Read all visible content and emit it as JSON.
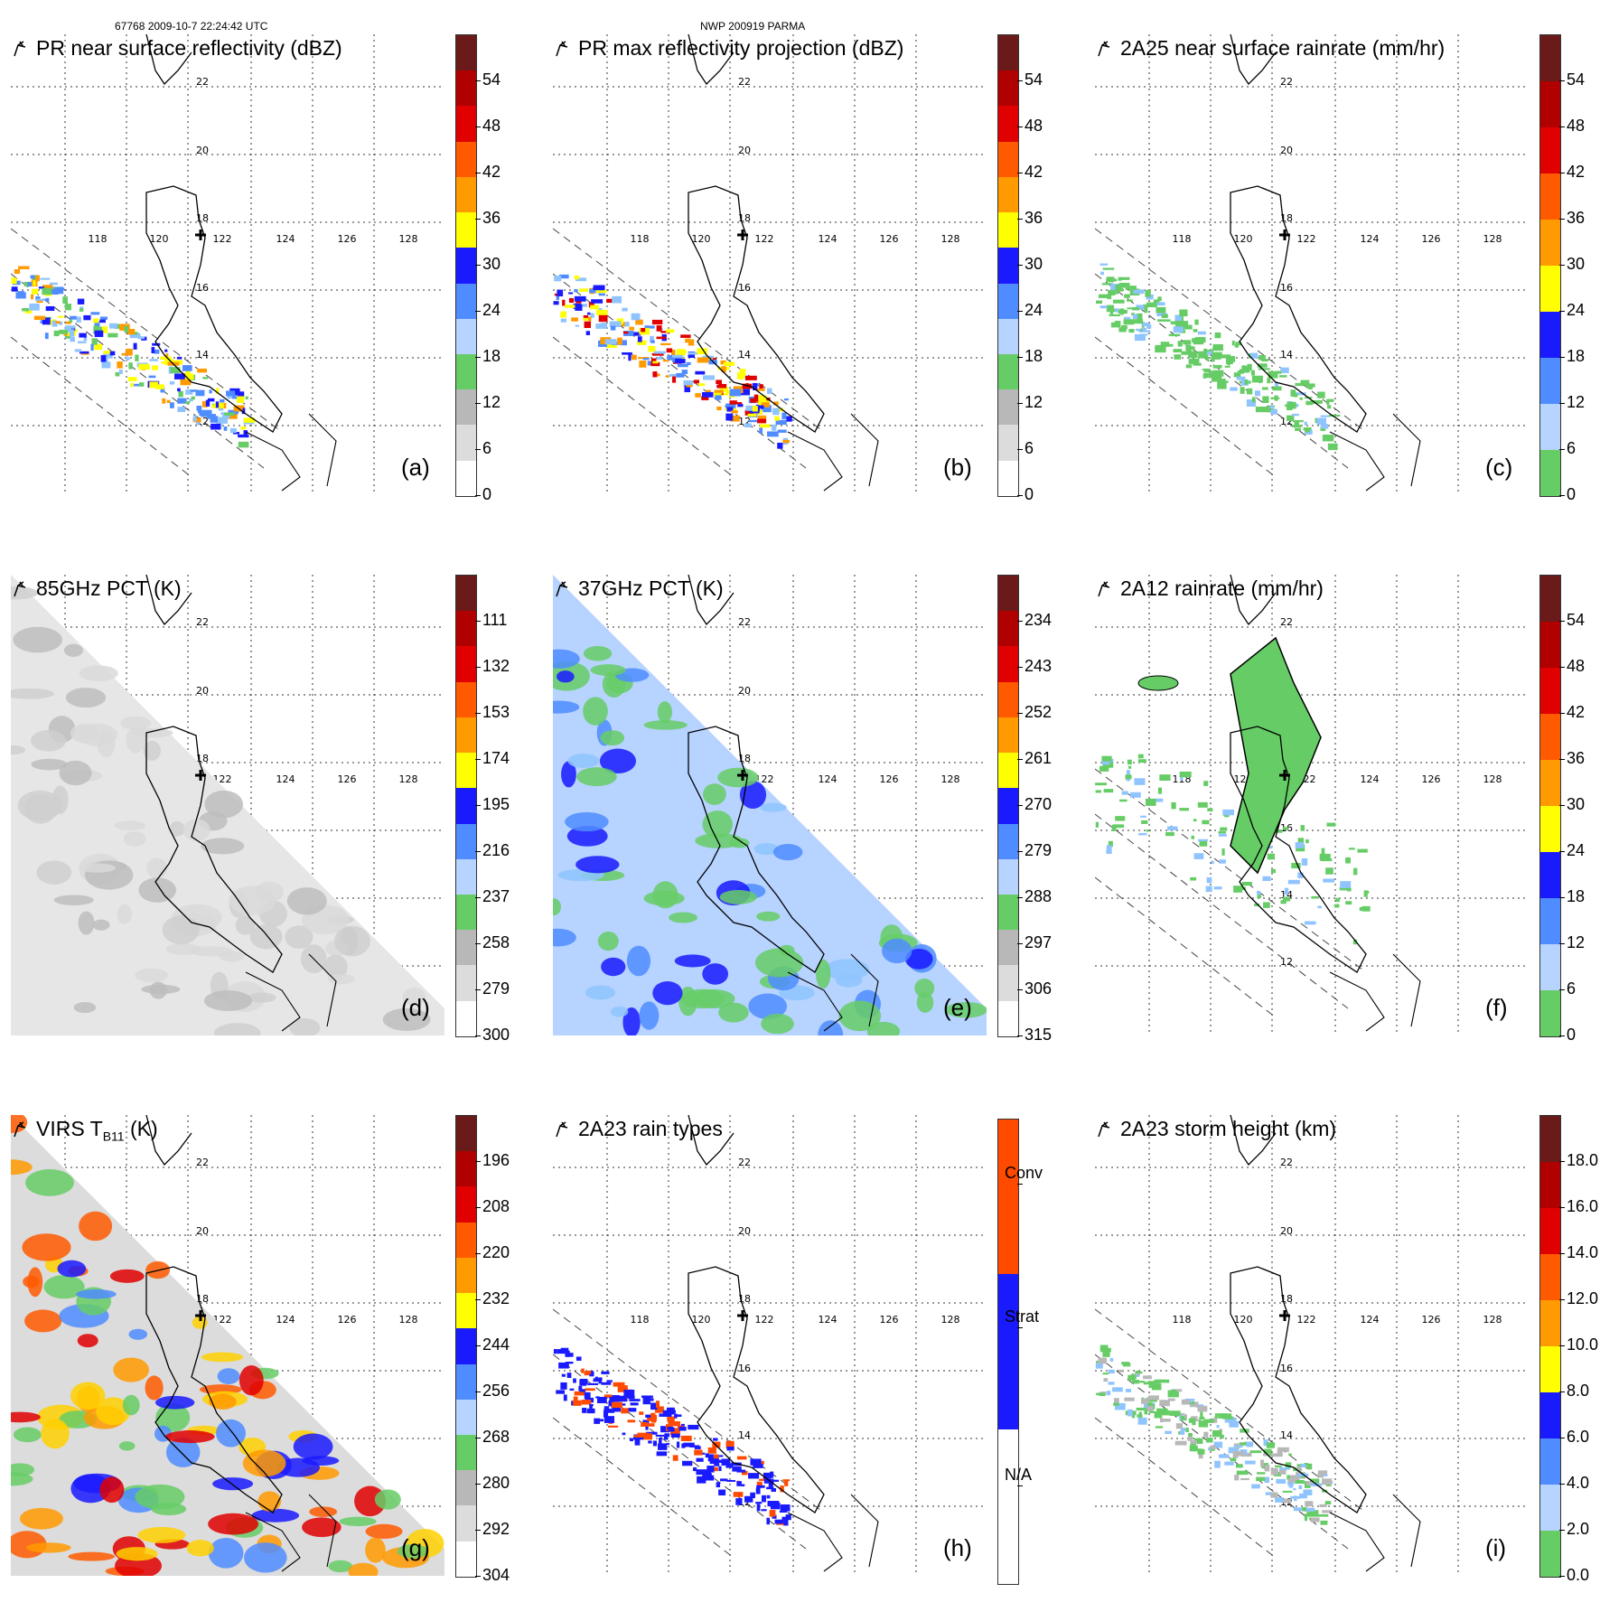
{
  "header": {
    "left": "67768 2009-10-7 22:24:42 UTC",
    "center": "NWP 200919 PARMA"
  },
  "grid": {
    "lon_labels": [
      "118",
      "120",
      "122",
      "124",
      "126",
      "128"
    ],
    "lat_labels": [
      "22",
      "20",
      "18",
      "16",
      "14",
      "12"
    ]
  },
  "colors": {
    "green": "#66cc66",
    "blue": "#1a1aff",
    "lightblue": "#8fc4ff",
    "yellow": "#ffff00",
    "orange": "#ff8c00",
    "red": "#e00000",
    "darkred": "#6b1a1a",
    "gray": "#b0b0b0"
  },
  "panels": [
    {
      "id": "a",
      "title": "PR near surface reflectivity (dBZ)",
      "label": "(a)",
      "colorbar": [
        "0",
        "6",
        "12",
        "18",
        "24",
        "30",
        "36",
        "42",
        "48",
        "54"
      ],
      "style": "pr"
    },
    {
      "id": "b",
      "title": "PR max reflectivity projection (dBZ)",
      "label": "(b)",
      "colorbar": [
        "0",
        "6",
        "12",
        "18",
        "24",
        "30",
        "36",
        "42",
        "48",
        "54"
      ],
      "style": "prmax"
    },
    {
      "id": "c",
      "title": "2A25 near surface rainrate (mm/hr)",
      "label": "(c)",
      "colorbar": [
        "0",
        "6",
        "12",
        "18",
        "24",
        "30",
        "36",
        "42",
        "48",
        "54"
      ],
      "style": "rr"
    },
    {
      "id": "d",
      "title": "85GHz PCT (K)",
      "label": "(d)",
      "colorbar": [
        "300",
        "279",
        "258",
        "237",
        "216",
        "195",
        "174",
        "153",
        "132",
        "111"
      ],
      "style": "pct85"
    },
    {
      "id": "e",
      "title": "37GHz PCT (K)",
      "label": "(e)",
      "colorbar": [
        "315",
        "306",
        "297",
        "288",
        "279",
        "270",
        "261",
        "252",
        "243",
        "234"
      ],
      "style": "pct37"
    },
    {
      "id": "f",
      "title": "2A12 rainrate (mm/hr)",
      "label": "(f)",
      "colorbar": [
        "0",
        "6",
        "12",
        "18",
        "24",
        "30",
        "36",
        "42",
        "48",
        "54"
      ],
      "style": "tmi"
    },
    {
      "id": "g",
      "title": "VIRS T",
      "title_sub": "B11",
      "title_suffix": " (K)",
      "label": "(g)",
      "colorbar": [
        "304",
        "292",
        "280",
        "268",
        "256",
        "244",
        "232",
        "220",
        "208",
        "196"
      ],
      "style": "virs"
    },
    {
      "id": "h",
      "title": "2A23 rain types",
      "label": "(h)",
      "colorbar": [
        "N/A",
        "Strat",
        "Conv"
      ],
      "style": "types"
    },
    {
      "id": "i",
      "title": "2A23 storm height (km)",
      "label": "(i)",
      "colorbar": [
        "0.0",
        "2.0",
        "4.0",
        "6.0",
        "8.0",
        "10.0",
        "12.0",
        "14.0",
        "16.0",
        "18.0"
      ],
      "style": "sh"
    }
  ]
}
